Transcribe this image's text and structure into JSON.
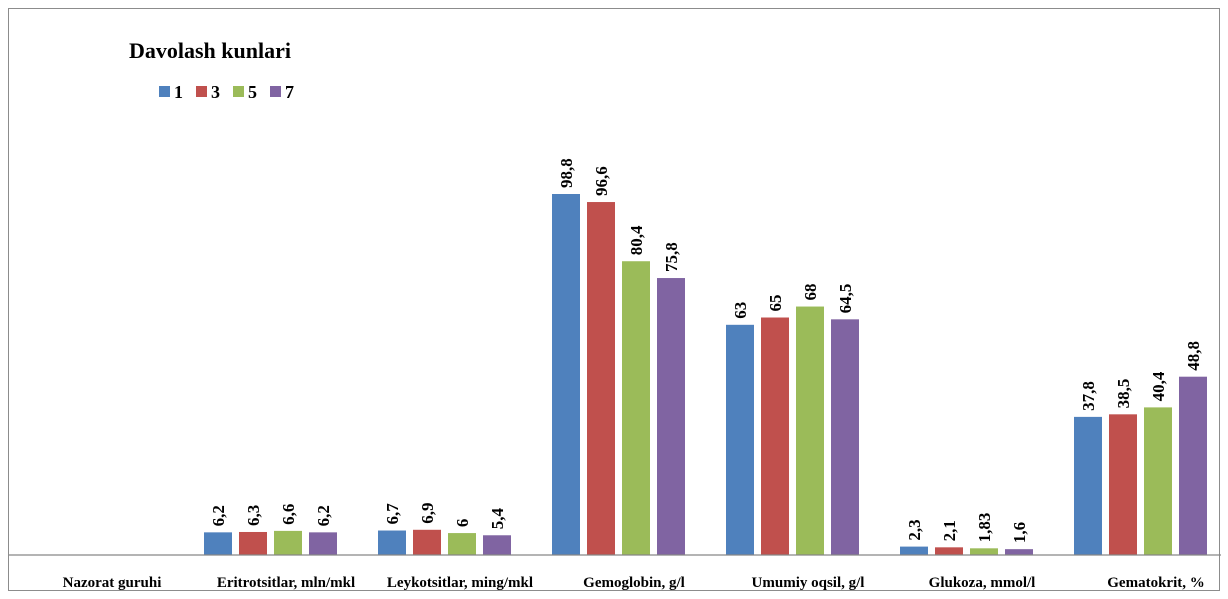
{
  "chart_data": {
    "type": "bar",
    "title": "",
    "xlabel": "",
    "ylabel": "",
    "legend_title": "Davolash kunlari",
    "legend_position": "top-left",
    "categories": [
      "Nazorat guruhi",
      "Eritrotsitlar, mln/mkl",
      "Leykotsitlar, ming/mkl",
      "Gemoglobin, g/l",
      "Umumiy oqsil, g/l",
      "Glukoza, mmol/l",
      "Gematokrit, %"
    ],
    "series": [
      {
        "name": "1",
        "color": "#4f81bd",
        "values": [
          null,
          6.2,
          6.7,
          98.8,
          63,
          2.3,
          37.8
        ],
        "labels": [
          "",
          "6,2",
          "6,7",
          "98,8",
          "63",
          "2,3",
          "37,8"
        ]
      },
      {
        "name": "3",
        "color": "#c0504d",
        "values": [
          null,
          6.3,
          6.9,
          96.6,
          65,
          2.1,
          38.5
        ],
        "labels": [
          "",
          "6,3",
          "6,9",
          "96,6",
          "65",
          "2,1",
          "38,5"
        ]
      },
      {
        "name": "5",
        "color": "#9bbb59",
        "values": [
          null,
          6.6,
          6,
          80.4,
          68,
          1.83,
          40.4
        ],
        "labels": [
          "",
          "6,6",
          "6",
          "80,4",
          "68",
          "1,83",
          "40,4"
        ]
      },
      {
        "name": "7",
        "color": "#8064a2",
        "values": [
          null,
          6.2,
          5.4,
          75.8,
          64.5,
          1.6,
          48.8
        ],
        "labels": [
          "",
          "6,2",
          "5,4",
          "75,8",
          "64,5",
          "1,6",
          "48,8"
        ]
      }
    ],
    "ylim": [
      0,
      98.8
    ],
    "grid": false,
    "axis_color": "#868686"
  }
}
